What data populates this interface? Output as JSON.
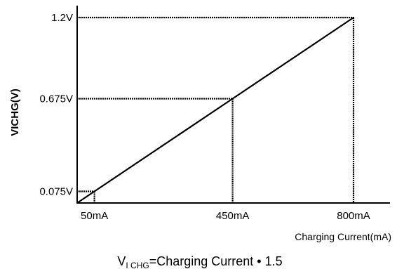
{
  "chart_data": {
    "type": "line",
    "xlabel": "Charging Current(mA)",
    "ylabel": "VICHG(V)",
    "xlim": [
      0,
      800
    ],
    "ylim": [
      0,
      1.2
    ],
    "series": [
      {
        "x": [
          0,
          50,
          450,
          800
        ],
        "y": [
          0,
          0.075,
          0.675,
          1.2
        ]
      }
    ],
    "guides": [
      {
        "x": 50,
        "y": 0.075,
        "x_label": "50mA",
        "y_label": "0.075V"
      },
      {
        "x": 450,
        "y": 0.675,
        "x_label": "450mA",
        "y_label": "0.675V"
      },
      {
        "x": 800,
        "y": 1.2,
        "x_label": "800mA",
        "y_label": "1.2V"
      }
    ],
    "formula": {
      "prefix": "V",
      "subscript": "I CHG",
      "suffix": "=Charging Current • 1.5"
    },
    "grid": false,
    "colors": {
      "line": "#000000",
      "axis": "#000000",
      "background": "#ffffff"
    }
  }
}
